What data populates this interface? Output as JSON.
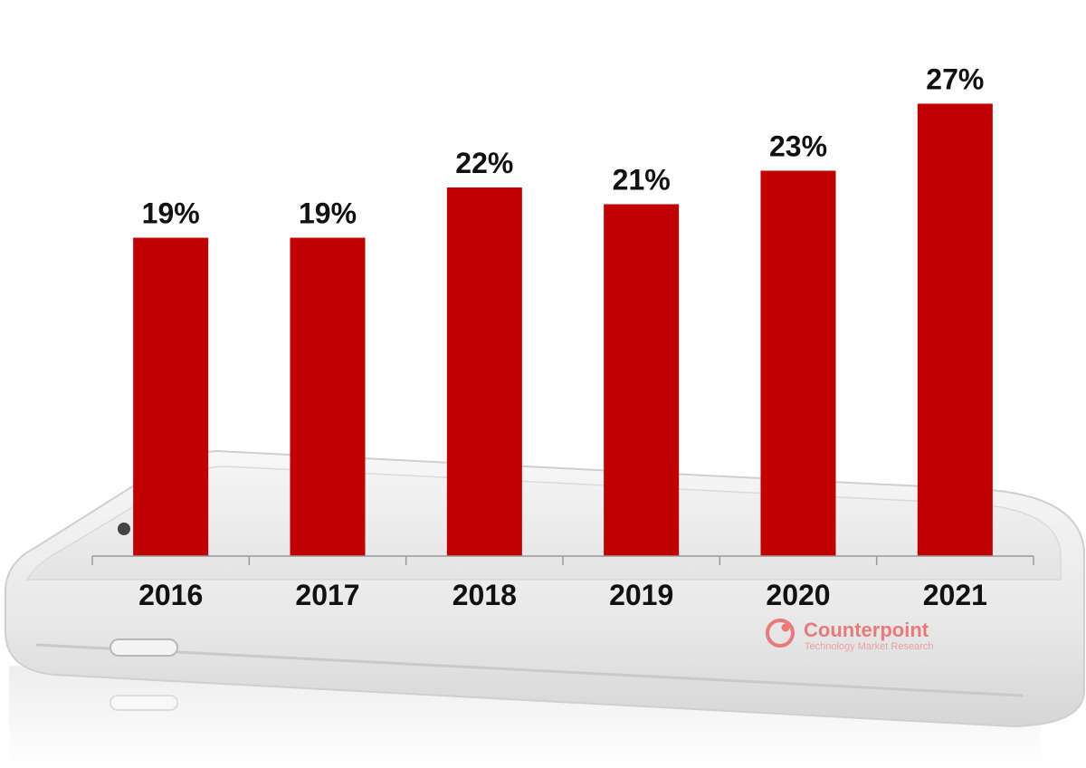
{
  "chart_data": {
    "type": "bar",
    "categories": [
      "2016",
      "2017",
      "2018",
      "2019",
      "2020",
      "2021"
    ],
    "values": [
      19,
      19,
      22,
      21,
      23,
      27
    ],
    "data_labels": [
      "19%",
      "19%",
      "22%",
      "21%",
      "23%",
      "27%"
    ],
    "title": "",
    "xlabel": "",
    "ylabel": "",
    "ylim": [
      0,
      30
    ],
    "grid": false,
    "legend": "none",
    "bar_color": "#c00000"
  },
  "branding": {
    "name": "Counterpoint",
    "tagline": "Technology Market Research",
    "color": "#e87a7a"
  }
}
